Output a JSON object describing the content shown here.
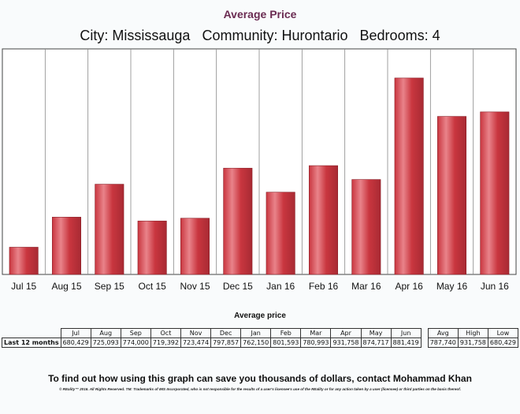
{
  "header": {
    "title": "Average Price",
    "city": "City: Mississauga",
    "community": "Community: Hurontario",
    "bedrooms": "Bedrooms: 4"
  },
  "chart_data": {
    "type": "bar",
    "categories": [
      "Jul 15",
      "Aug 15",
      "Sep 15",
      "Oct 15",
      "Nov 15",
      "Dec 15",
      "Jan 16",
      "Feb 16",
      "Mar 16",
      "Apr 16",
      "May 16",
      "Jun 16"
    ],
    "values": [
      680429,
      725093,
      774000,
      719392,
      723474,
      797857,
      762150,
      801593,
      780993,
      931758,
      874717,
      881419
    ],
    "title": "Average Price",
    "xlabel": "",
    "ylabel": "",
    "ylim": [
      640000,
      975000
    ],
    "grid": "vertical",
    "bar_color": "#c9363f",
    "bar_highlight": "#e9838a"
  },
  "table": {
    "title": "Average price",
    "row_label": "Last 12 months",
    "months": [
      "Jul",
      "Aug",
      "Sep",
      "Oct",
      "Nov",
      "Dec",
      "Jan",
      "Feb",
      "Mar",
      "Apr",
      "May",
      "Jun"
    ],
    "values": [
      "680,429",
      "725,093",
      "774,000",
      "719,392",
      "723,474",
      "797,857",
      "762,150",
      "801,593",
      "780,993",
      "931,758",
      "874,717",
      "881,419"
    ],
    "summary_headers": [
      "Avg",
      "High",
      "Low"
    ],
    "summary_values": [
      "787,740",
      "931,758",
      "680,429"
    ]
  },
  "footer": {
    "cta": "To find out how using this graph can save you thousands of dollars, contact Mohammad Khan",
    "disclaimer": "© REality™ 2016. All Rights Reserved. TM: Trademarks of IMS Incorporated, who is not responsible for the results of a user's licensee's use of the REality or for any action taken by a user (licensee) or third parties on the basis thereof."
  }
}
